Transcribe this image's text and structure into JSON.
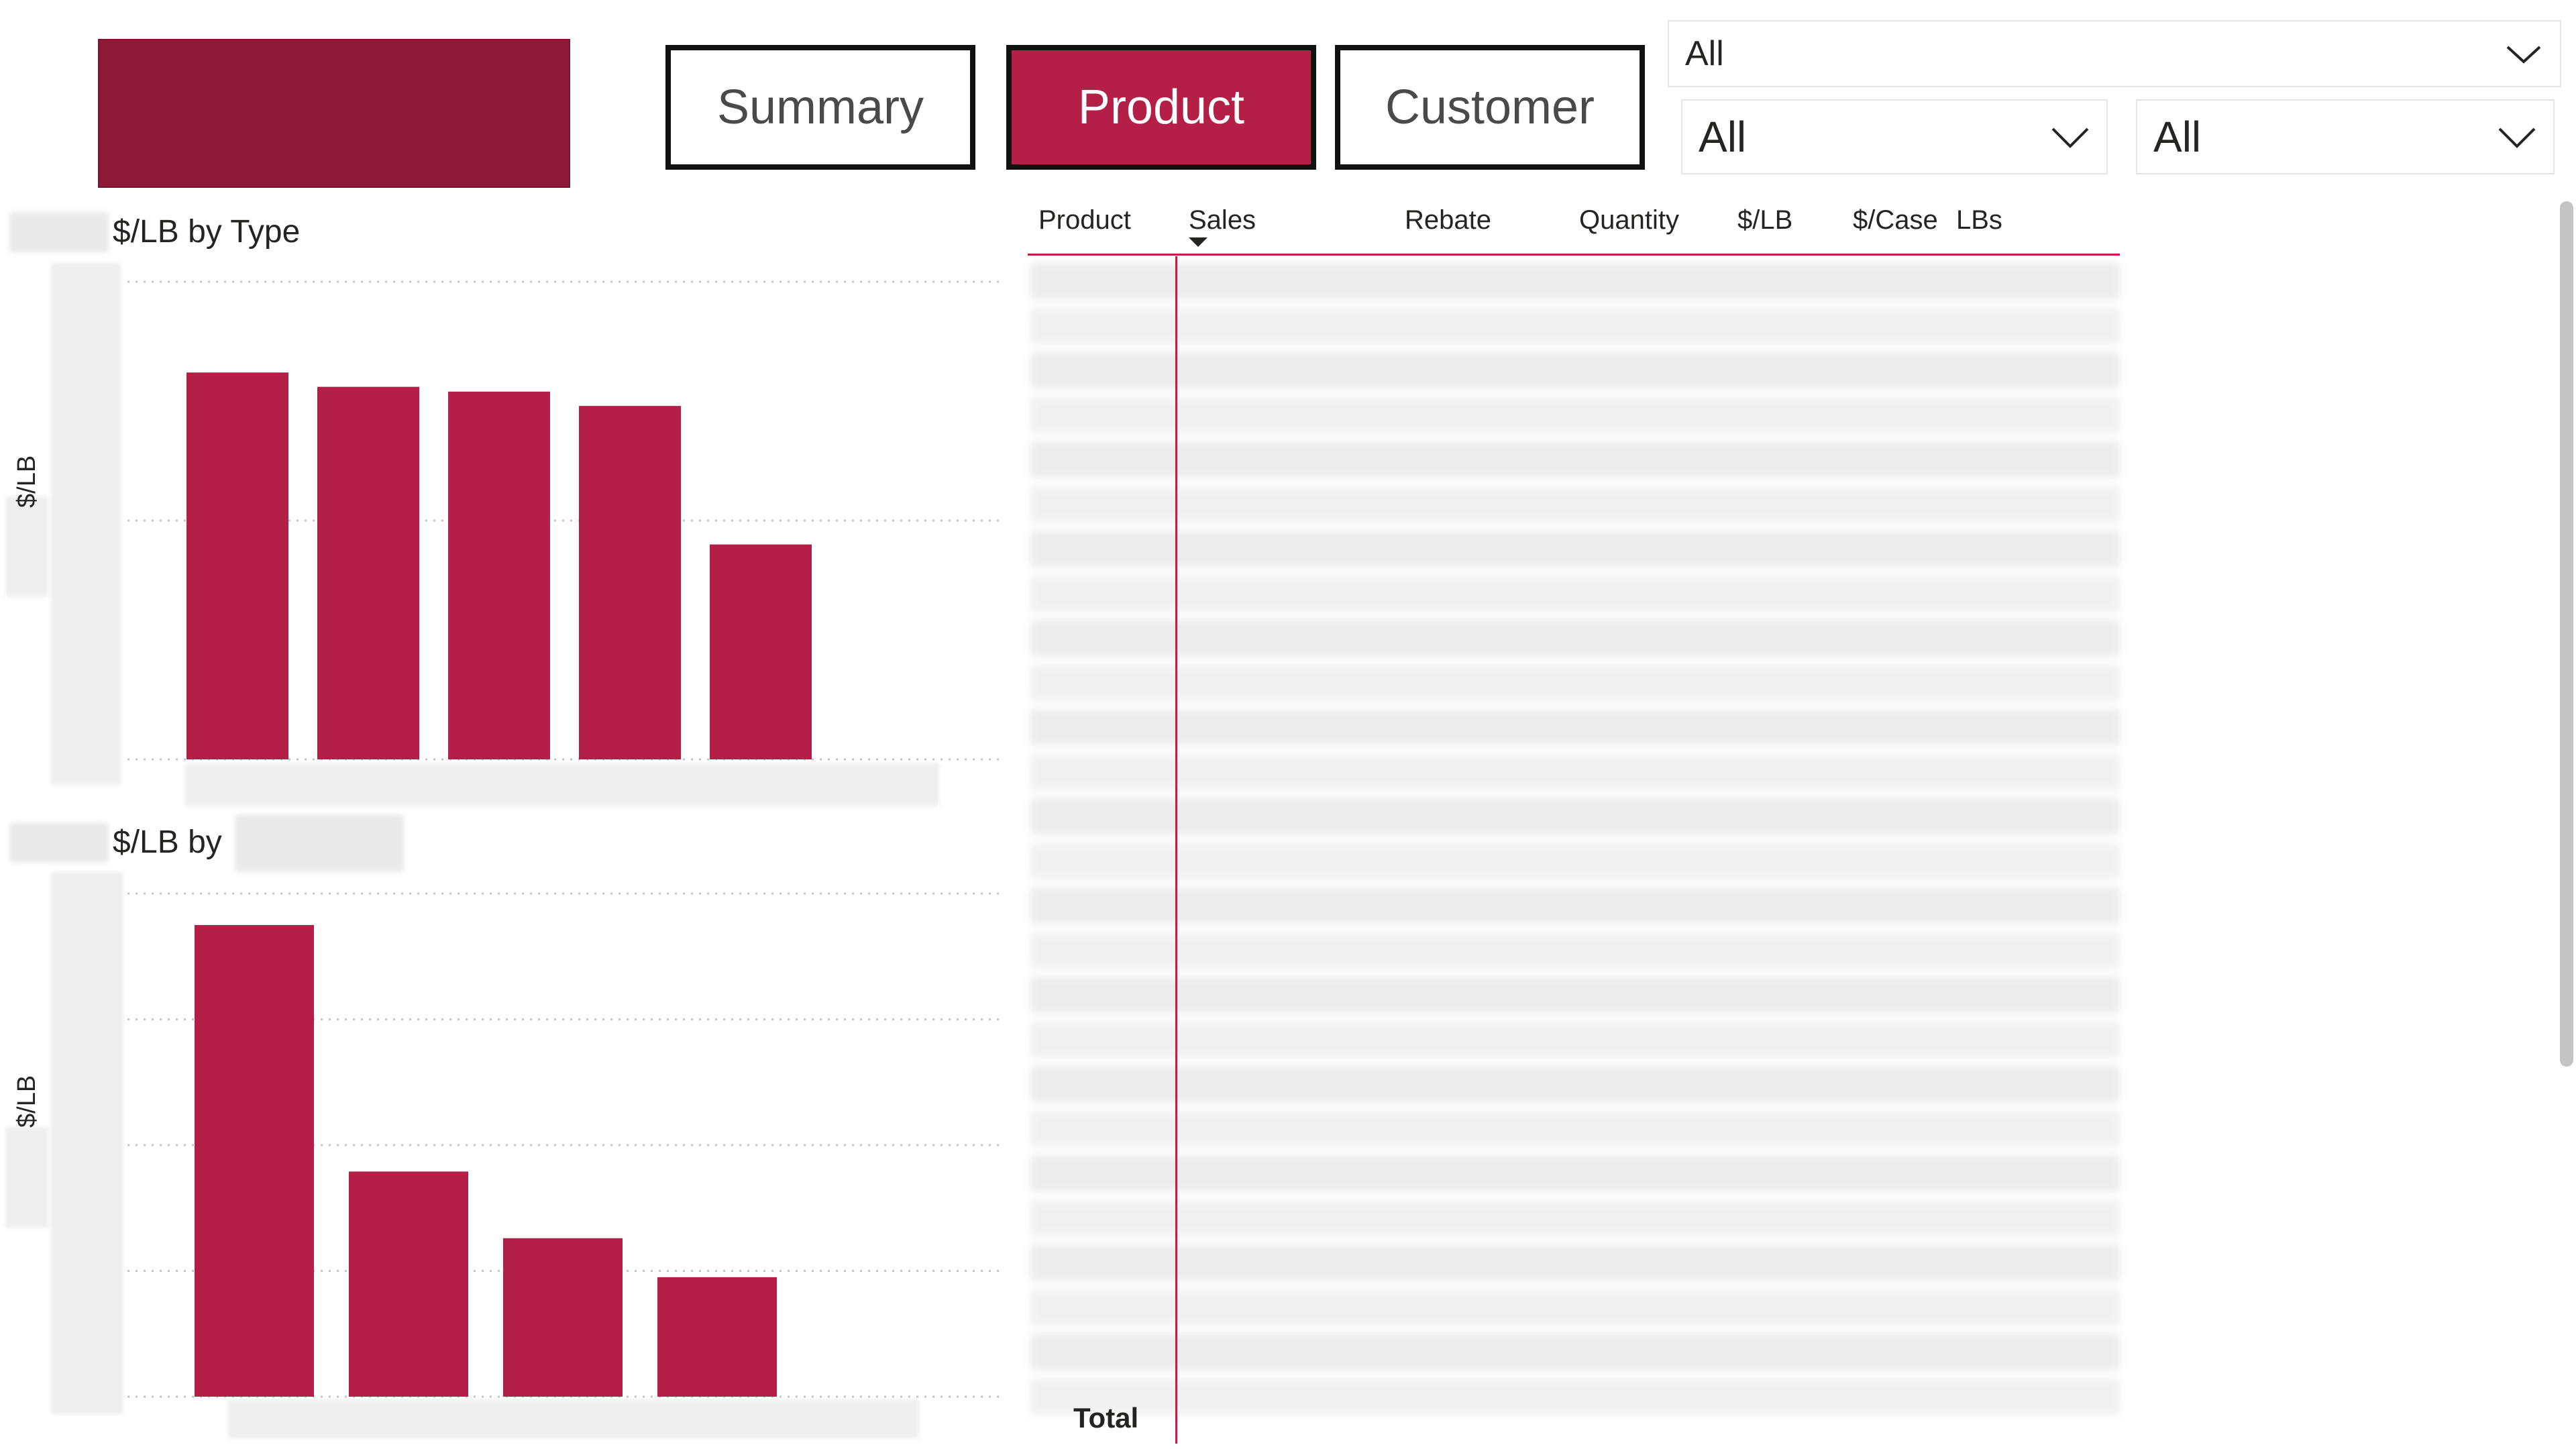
{
  "brand": {
    "accent": "#b31f47",
    "logo_color": "#8f1a38"
  },
  "nav": {
    "summary": "Summary",
    "product": "Product",
    "customer": "Customer",
    "active": "product"
  },
  "slicers": {
    "top": "All",
    "left": "All",
    "right": "All"
  },
  "charts": {
    "by_type": {
      "title": "$/LB by Type",
      "ylabel": "$/LB"
    },
    "by_other": {
      "title": "$/LB by",
      "ylabel": "$/LB"
    }
  },
  "chart_data": [
    {
      "type": "bar",
      "title": "$/LB by Type",
      "ylabel": "$/LB",
      "categories": [
        "",
        "",
        "",
        "",
        ""
      ],
      "values": [
        0.81,
        0.78,
        0.77,
        0.74,
        0.45
      ],
      "ylim": [
        0,
        1.0
      ],
      "grid": true,
      "color": "#b31f47"
    },
    {
      "type": "bar",
      "title": "$/LB by",
      "ylabel": "$/LB",
      "categories": [
        "",
        "",
        "",
        ""
      ],
      "values": [
        3.75,
        1.79,
        1.26,
        0.95
      ],
      "ylim": [
        0,
        4.0
      ],
      "grid": true,
      "color": "#b31f47"
    }
  ],
  "table": {
    "columns": [
      "Product",
      "Sales",
      "Rebate",
      "Quantity",
      "$/LB",
      "$/Case",
      "LBs"
    ],
    "sorted_by": "Sales",
    "total_label": "Total"
  }
}
